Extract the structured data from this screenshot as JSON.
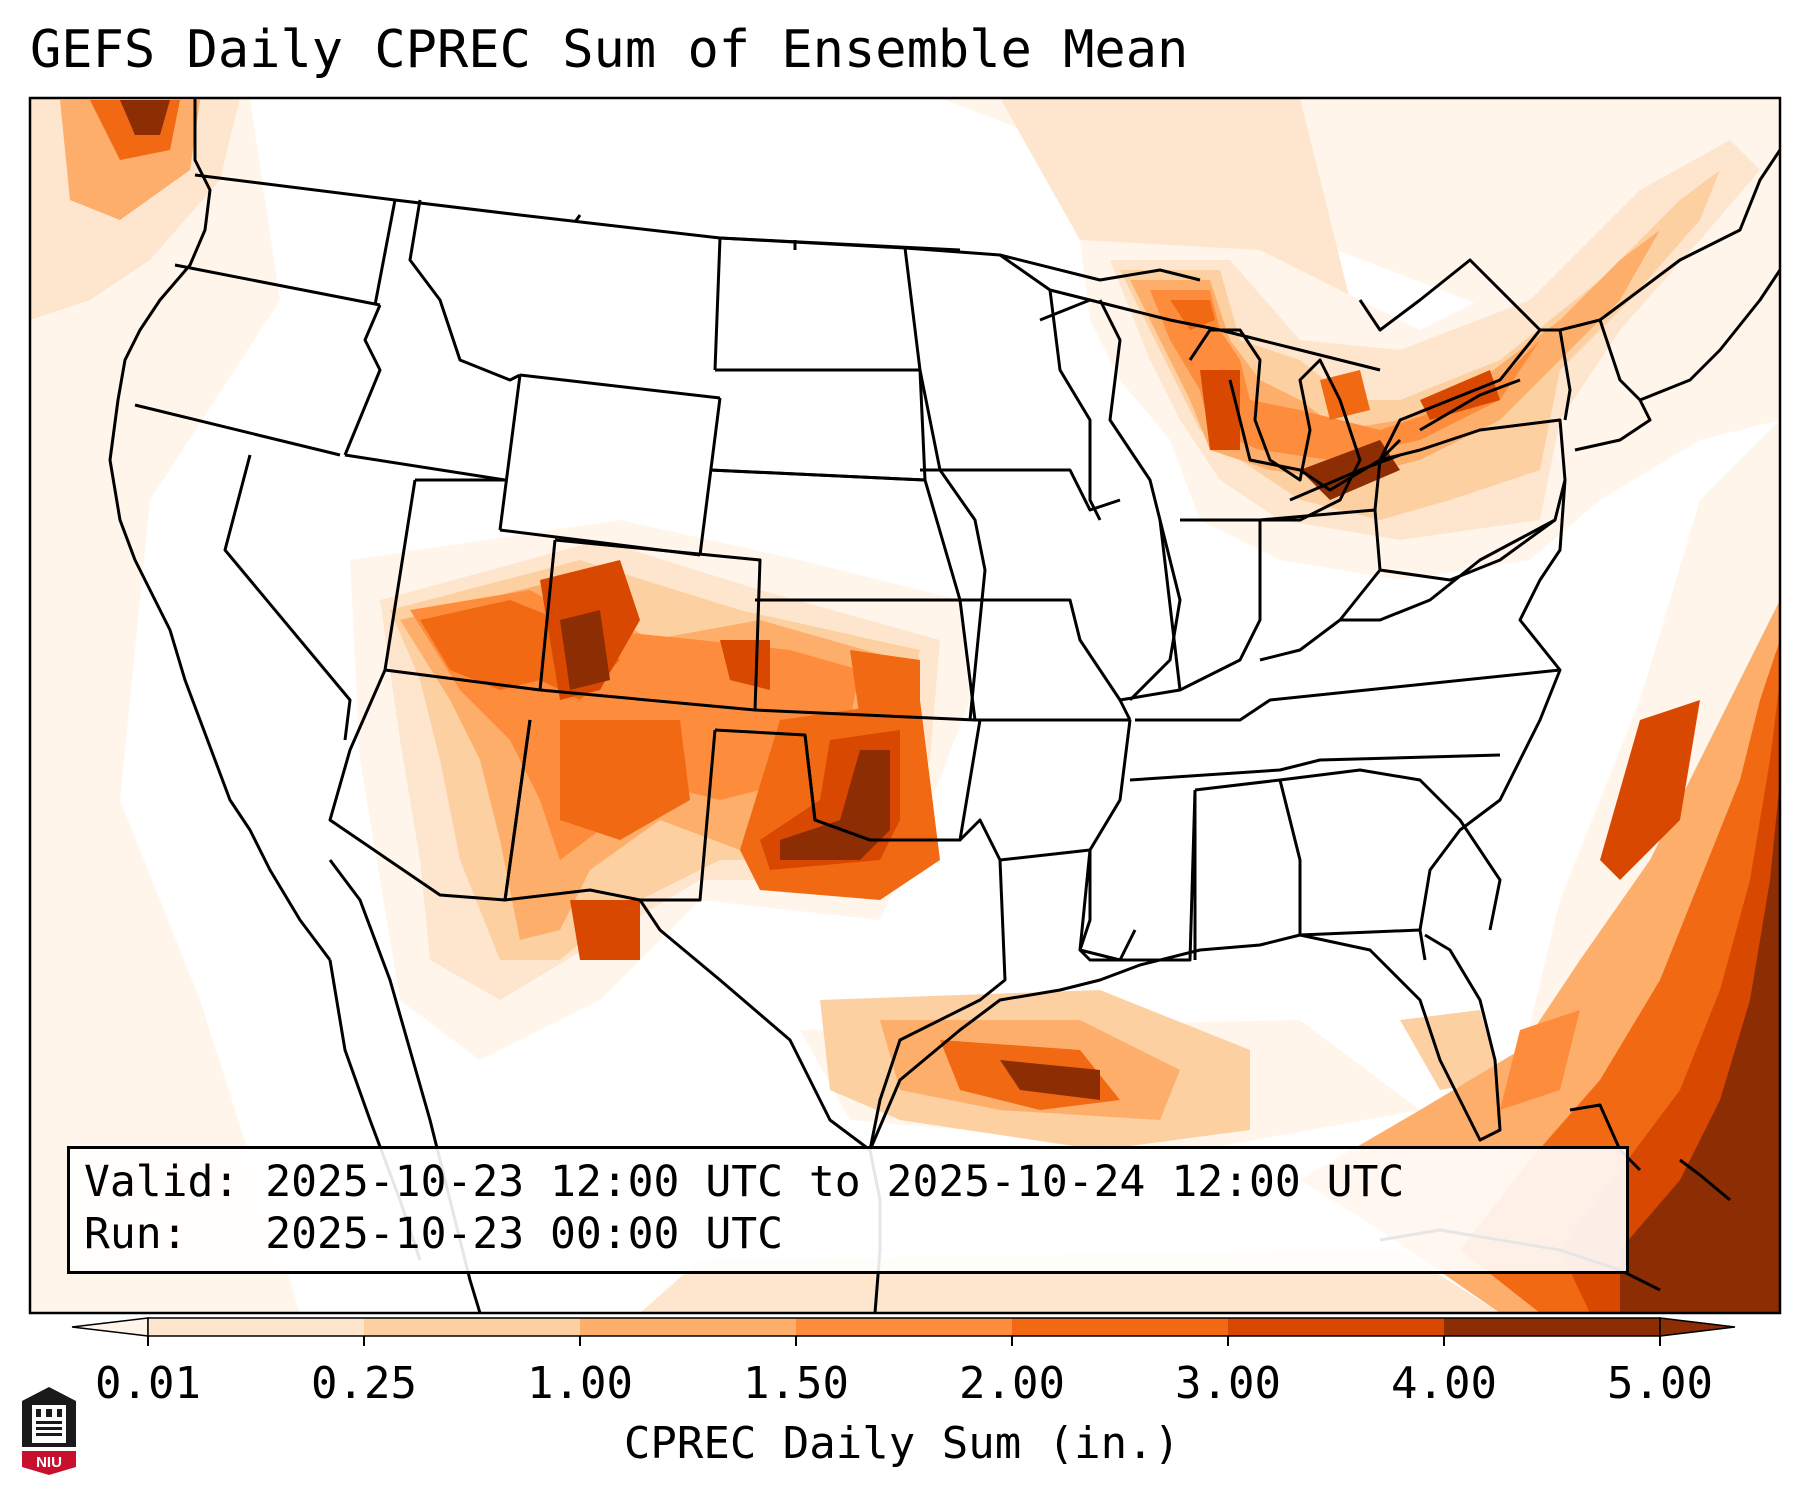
{
  "title": "GEFS Daily CPREC Sum of Ensemble Mean",
  "info": {
    "valid_label": "Valid:",
    "valid_value": "2025-10-23 12:00 UTC to 2025-10-24 12:00 UTC",
    "run_label": "Run:",
    "run_value": "2025-10-23 00:00 UTC"
  },
  "colorbar": {
    "label": "CPREC Daily Sum (in.)",
    "ticks": [
      "0.01",
      "0.25",
      "1.00",
      "1.50",
      "2.00",
      "3.00",
      "4.00",
      "5.00"
    ],
    "colors": [
      "#fff5eb",
      "#fee6ce",
      "#fdd0a2",
      "#fdae6b",
      "#fd8d3c",
      "#f16913",
      "#d94801",
      "#8c2d04"
    ],
    "extend": "both"
  },
  "logo": {
    "text": "NIU",
    "color": "#c8102e"
  }
}
